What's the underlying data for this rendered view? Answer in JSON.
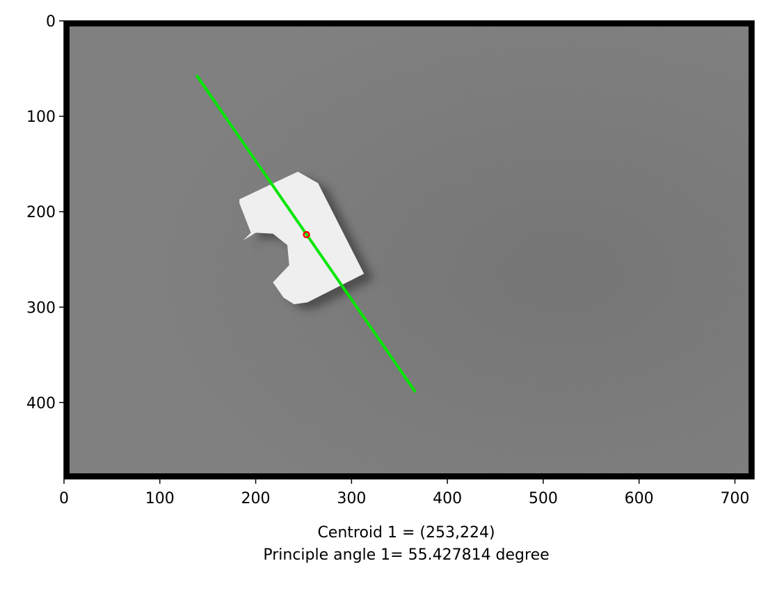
{
  "chart_data": {
    "type": "image",
    "xlim": [
      0,
      720
    ],
    "ylim": [
      480,
      0
    ],
    "xticks": [
      0,
      100,
      200,
      300,
      400,
      500,
      600,
      700
    ],
    "yticks": [
      0,
      100,
      200,
      300,
      400
    ],
    "xlabel_lines": [
      "Centroid 1 = (253,224)",
      "Principle angle 1= 55.427814 degree"
    ],
    "image": {
      "description": "grayscale photo of a white part on a gray background",
      "background_color": "#7a7a7a",
      "border_color": "#000000"
    },
    "object": {
      "polygon": [
        [
          183,
          187
        ],
        [
          244,
          158
        ],
        [
          265,
          170
        ],
        [
          313,
          265
        ],
        [
          254,
          295
        ],
        [
          240,
          297
        ],
        [
          229,
          290
        ],
        [
          218,
          274
        ],
        [
          235,
          256
        ],
        [
          233,
          235
        ],
        [
          218,
          223
        ],
        [
          200,
          222
        ],
        [
          187,
          230
        ],
        [
          195,
          222
        ],
        [
          183,
          191
        ]
      ],
      "color": "#efefef"
    },
    "principal_axis": {
      "start": [
        139,
        58
      ],
      "end": [
        366,
        388
      ],
      "color": "#00e600"
    },
    "centroid": {
      "x": 253,
      "y": 224,
      "color": "#ff0000"
    }
  }
}
